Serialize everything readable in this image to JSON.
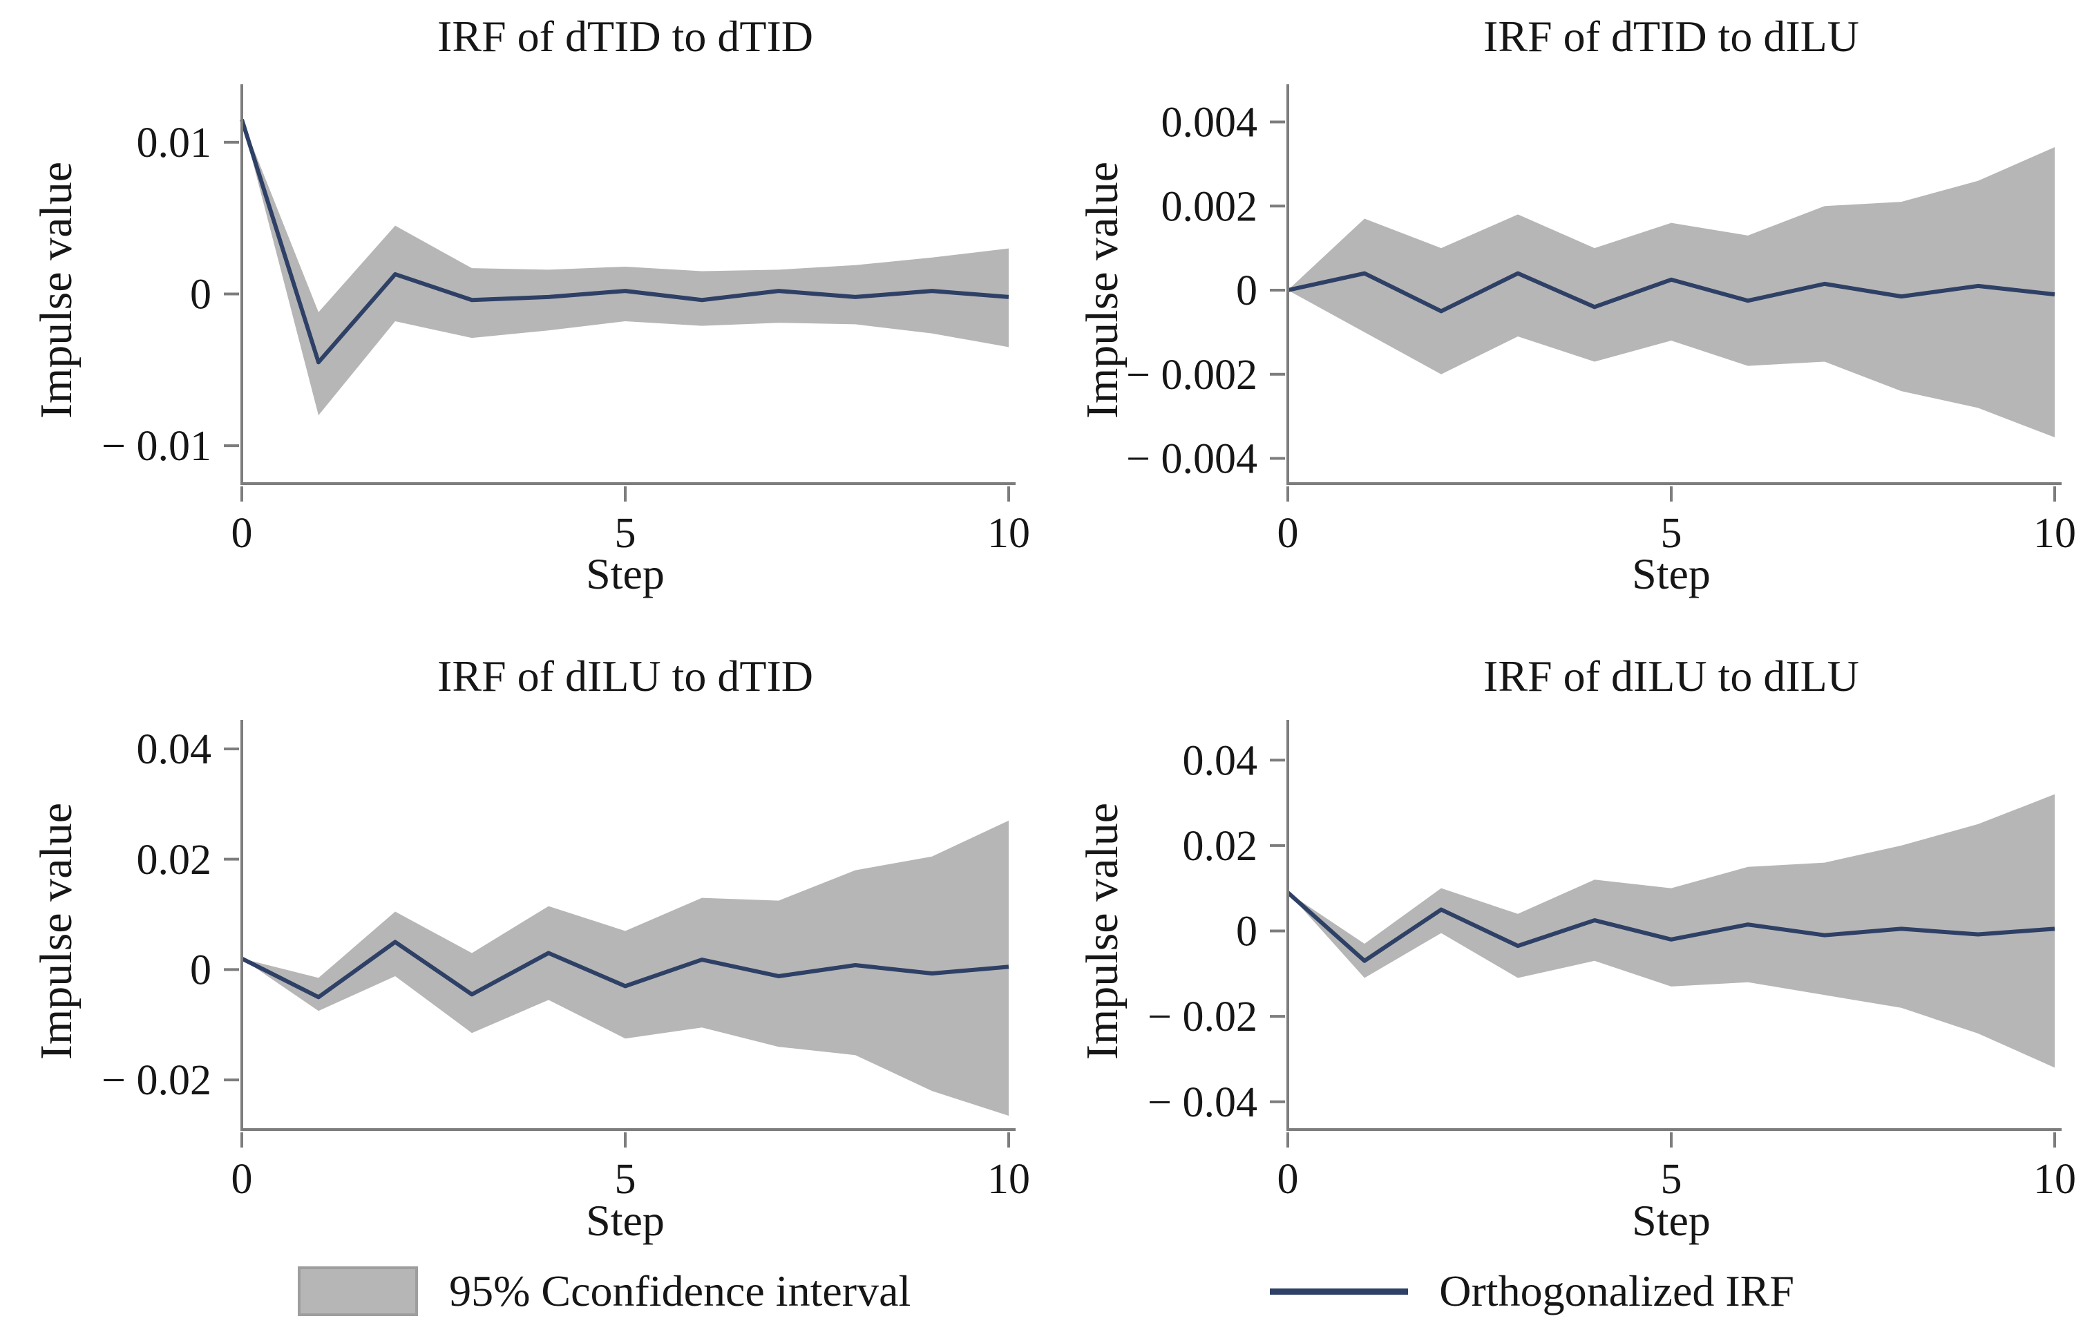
{
  "figure": {
    "background": "#ffffff",
    "text_color": "#161616",
    "axis_color": "#7d7d7d"
  },
  "legend": {
    "ci_label": "95% Cconfidence interval",
    "irf_label": "Orthogonalized IRF",
    "ci_color": "#b6b6b6",
    "irf_color": "#2e4066"
  },
  "chart_data": [
    {
      "type": "line",
      "title": "IRF of dTID to dTID",
      "xlabel": "Step",
      "ylabel": "Impulse value",
      "grid": false,
      "legend_position": "bottom-shared",
      "band_color": "#b6b6b6",
      "line_color": "#2e4066",
      "x": [
        0,
        1,
        2,
        3,
        4,
        5,
        6,
        7,
        8,
        9,
        10
      ],
      "series": [
        {
          "name": "Orthogonalized IRF",
          "values": [
            0.0115,
            -0.0045,
            0.0013,
            -0.0004,
            -0.0002,
            0.0002,
            -0.0004,
            0.0002,
            -0.0002,
            0.0002,
            -0.0002
          ]
        },
        {
          "name": "95% CI upper",
          "values": [
            0.0115,
            -0.0012,
            0.0045,
            0.0017,
            0.0016,
            0.0018,
            0.0015,
            0.0016,
            0.0019,
            0.0024,
            0.003
          ]
        },
        {
          "name": "95% CI lower",
          "values": [
            0.0115,
            -0.008,
            -0.0018,
            -0.0029,
            -0.0024,
            -0.0018,
            -0.0021,
            -0.0019,
            -0.002,
            -0.0026,
            -0.0035
          ]
        }
      ],
      "xlim": [
        0,
        10
      ],
      "ylim": [
        -0.0125,
        0.013
      ],
      "xticks": {
        "values": [
          0,
          5,
          10
        ],
        "labels": [
          "0",
          "5",
          "10"
        ]
      },
      "yticks": {
        "values": [
          0.01,
          0,
          -0.01
        ],
        "labels": [
          "0.01",
          "0",
          "− 0.01"
        ]
      }
    },
    {
      "type": "line",
      "title": "IRF of dTID to dILU",
      "xlabel": "Step",
      "ylabel": "Impulse value",
      "grid": false,
      "legend_position": "bottom-shared",
      "band_color": "#b6b6b6",
      "line_color": "#2e4066",
      "x": [
        0,
        1,
        2,
        3,
        4,
        5,
        6,
        7,
        8,
        9,
        10
      ],
      "series": [
        {
          "name": "Orthogonalized IRF",
          "values": [
            0,
            0.0004,
            -0.0005,
            0.0004,
            -0.0004,
            0.00025,
            -0.00025,
            0.00015,
            -0.00015,
            0.0001,
            -0.0001
          ]
        },
        {
          "name": "95% CI upper",
          "values": [
            0,
            0.0017,
            0.001,
            0.0018,
            0.001,
            0.0016,
            0.0013,
            0.002,
            0.0021,
            0.0026,
            0.0034
          ]
        },
        {
          "name": "95% CI lower",
          "values": [
            0,
            -0.001,
            -0.002,
            -0.0011,
            -0.0017,
            -0.0012,
            -0.0018,
            -0.0017,
            -0.0024,
            -0.0028,
            -0.0035
          ]
        }
      ],
      "xlim": [
        0,
        10
      ],
      "ylim": [
        -0.0046,
        0.0046
      ],
      "xticks": {
        "values": [
          0,
          5,
          10
        ],
        "labels": [
          "0",
          "5",
          "10"
        ]
      },
      "yticks": {
        "values": [
          0.004,
          0.002,
          0,
          -0.002,
          -0.004
        ],
        "labels": [
          "0.004",
          "0.002",
          "0",
          "− 0.002",
          "− 0.004"
        ]
      }
    },
    {
      "type": "line",
      "title": "IRF of dILU to dTID",
      "xlabel": "Step",
      "ylabel": "Impulse value",
      "grid": false,
      "legend_position": "bottom-shared",
      "band_color": "#b6b6b6",
      "line_color": "#2e4066",
      "x": [
        0,
        1,
        2,
        3,
        4,
        5,
        6,
        7,
        8,
        9,
        10
      ],
      "series": [
        {
          "name": "Orthogonalized IRF",
          "values": [
            0.002,
            -0.005,
            0.005,
            -0.0045,
            0.003,
            -0.003,
            0.0018,
            -0.0012,
            0.0008,
            -0.0007,
            0.0005
          ]
        },
        {
          "name": "95% CI upper",
          "values": [
            0.002,
            -0.0015,
            0.0105,
            0.003,
            0.0115,
            0.007,
            0.013,
            0.0125,
            0.018,
            0.0205,
            0.027
          ]
        },
        {
          "name": "95% CI lower",
          "values": [
            0.002,
            -0.0075,
            -0.0012,
            -0.0115,
            -0.0055,
            -0.0125,
            -0.0105,
            -0.014,
            -0.0155,
            -0.022,
            -0.0265
          ]
        }
      ],
      "xlim": [
        0,
        10
      ],
      "ylim": [
        -0.029,
        0.043
      ],
      "xticks": {
        "values": [
          0,
          5,
          10
        ],
        "labels": [
          "0",
          "5",
          "10"
        ]
      },
      "yticks": {
        "values": [
          0.04,
          0.02,
          0,
          -0.02
        ],
        "labels": [
          "0.04",
          "0.02",
          "0",
          "− 0.02"
        ]
      }
    },
    {
      "type": "line",
      "title": "IRF of dILU to dILU",
      "xlabel": "Step",
      "ylabel": "Impulse value",
      "grid": false,
      "legend_position": "bottom-shared",
      "band_color": "#b6b6b6",
      "line_color": "#2e4066",
      "x": [
        0,
        1,
        2,
        3,
        4,
        5,
        6,
        7,
        8,
        9,
        10
      ],
      "series": [
        {
          "name": "Orthogonalized IRF",
          "values": [
            0.009,
            -0.007,
            0.005,
            -0.0035,
            0.0025,
            -0.002,
            0.0015,
            -0.001,
            0.0005,
            -0.0008,
            0.0005
          ]
        },
        {
          "name": "95% CI upper",
          "values": [
            0.009,
            -0.003,
            0.01,
            0.004,
            0.012,
            0.01,
            0.015,
            0.016,
            0.02,
            0.025,
            0.032
          ]
        },
        {
          "name": "95% CI lower",
          "values": [
            0.009,
            -0.011,
            -0.0005,
            -0.011,
            -0.007,
            -0.013,
            -0.012,
            -0.015,
            -0.018,
            -0.024,
            -0.032
          ]
        }
      ],
      "xlim": [
        0,
        10
      ],
      "ylim": [
        -0.0465,
        0.0465
      ],
      "xticks": {
        "values": [
          0,
          5,
          10
        ],
        "labels": [
          "0",
          "5",
          "10"
        ]
      },
      "yticks": {
        "values": [
          0.04,
          0.02,
          0,
          -0.02,
          -0.04
        ],
        "labels": [
          "0.04",
          "0.02",
          "0",
          "− 0.02",
          "− 0.04"
        ]
      }
    }
  ]
}
